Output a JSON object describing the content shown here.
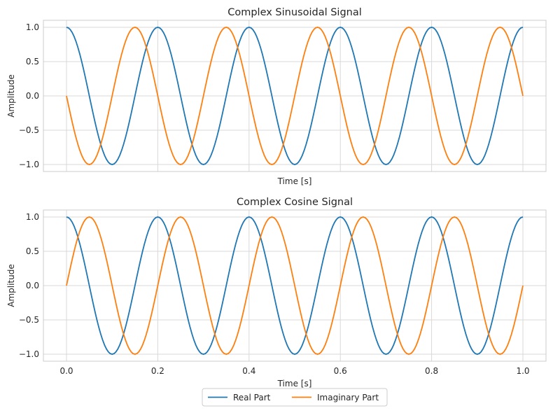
{
  "chart_data": [
    {
      "type": "line",
      "title": "Complex Sinusoidal Signal",
      "xlabel": "Time [s]",
      "ylabel": "Amplitude",
      "xlim": [
        0.0,
        1.0
      ],
      "ylim": [
        -1.0,
        1.0
      ],
      "xticks": [
        "0.0",
        "0.2",
        "0.4",
        "0.6",
        "0.8",
        "1.0"
      ],
      "yticks": [
        "1.0",
        "0.5",
        "0.0",
        "−0.5",
        "−1.0"
      ],
      "grid": true,
      "x": [
        0.0,
        0.05,
        0.1,
        0.15,
        0.2,
        0.25,
        0.3,
        0.35,
        0.4,
        0.45,
        0.5,
        0.55,
        0.6,
        0.65,
        0.7,
        0.75,
        0.8,
        0.85,
        0.9,
        0.95,
        1.0
      ],
      "series": [
        {
          "name": "Real Part",
          "color": "#1f77b4",
          "values": [
            1.0,
            0.0,
            -1.0,
            0.0,
            1.0,
            0.0,
            -1.0,
            0.0,
            1.0,
            0.0,
            -1.0,
            0.0,
            1.0,
            0.0,
            -1.0,
            0.0,
            1.0,
            0.0,
            -1.0,
            0.0,
            1.0
          ]
        },
        {
          "name": "Imaginary Part",
          "color": "#ff7f0e",
          "values": [
            0.0,
            -1.0,
            0.0,
            1.0,
            0.0,
            -1.0,
            0.0,
            1.0,
            0.0,
            -1.0,
            0.0,
            1.0,
            0.0,
            -1.0,
            0.0,
            1.0,
            0.0,
            -1.0,
            0.0,
            1.0,
            0.0
          ]
        }
      ]
    },
    {
      "type": "line",
      "title": "Complex Cosine Signal",
      "xlabel": "Time [s]",
      "ylabel": "Amplitude",
      "xlim": [
        0.0,
        1.0
      ],
      "ylim": [
        -1.0,
        1.0
      ],
      "xticks": [
        "0.0",
        "0.2",
        "0.4",
        "0.6",
        "0.8",
        "1.0"
      ],
      "yticks": [
        "1.0",
        "0.5",
        "0.0",
        "−0.5",
        "−1.0"
      ],
      "grid": true,
      "x": [
        0.0,
        0.05,
        0.1,
        0.15,
        0.2,
        0.25,
        0.3,
        0.35,
        0.4,
        0.45,
        0.5,
        0.55,
        0.6,
        0.65,
        0.7,
        0.75,
        0.8,
        0.85,
        0.9,
        0.95,
        1.0
      ],
      "series": [
        {
          "name": "Real Part",
          "color": "#1f77b4",
          "values": [
            1.0,
            0.0,
            -1.0,
            0.0,
            1.0,
            0.0,
            -1.0,
            0.0,
            1.0,
            0.0,
            -1.0,
            0.0,
            1.0,
            0.0,
            -1.0,
            0.0,
            1.0,
            0.0,
            -1.0,
            0.0,
            1.0
          ]
        },
        {
          "name": "Imaginary Part",
          "color": "#ff7f0e",
          "values": [
            0.0,
            1.0,
            0.0,
            -1.0,
            0.0,
            1.0,
            0.0,
            -1.0,
            0.0,
            1.0,
            0.0,
            -1.0,
            0.0,
            1.0,
            0.0,
            -1.0,
            0.0,
            1.0,
            0.0,
            -1.0,
            0.0
          ]
        }
      ]
    }
  ],
  "legend": {
    "position": "bottom-center",
    "items": [
      {
        "label": "Real Part",
        "color": "#1f77b4"
      },
      {
        "label": "Imaginary Part",
        "color": "#ff7f0e"
      }
    ]
  }
}
